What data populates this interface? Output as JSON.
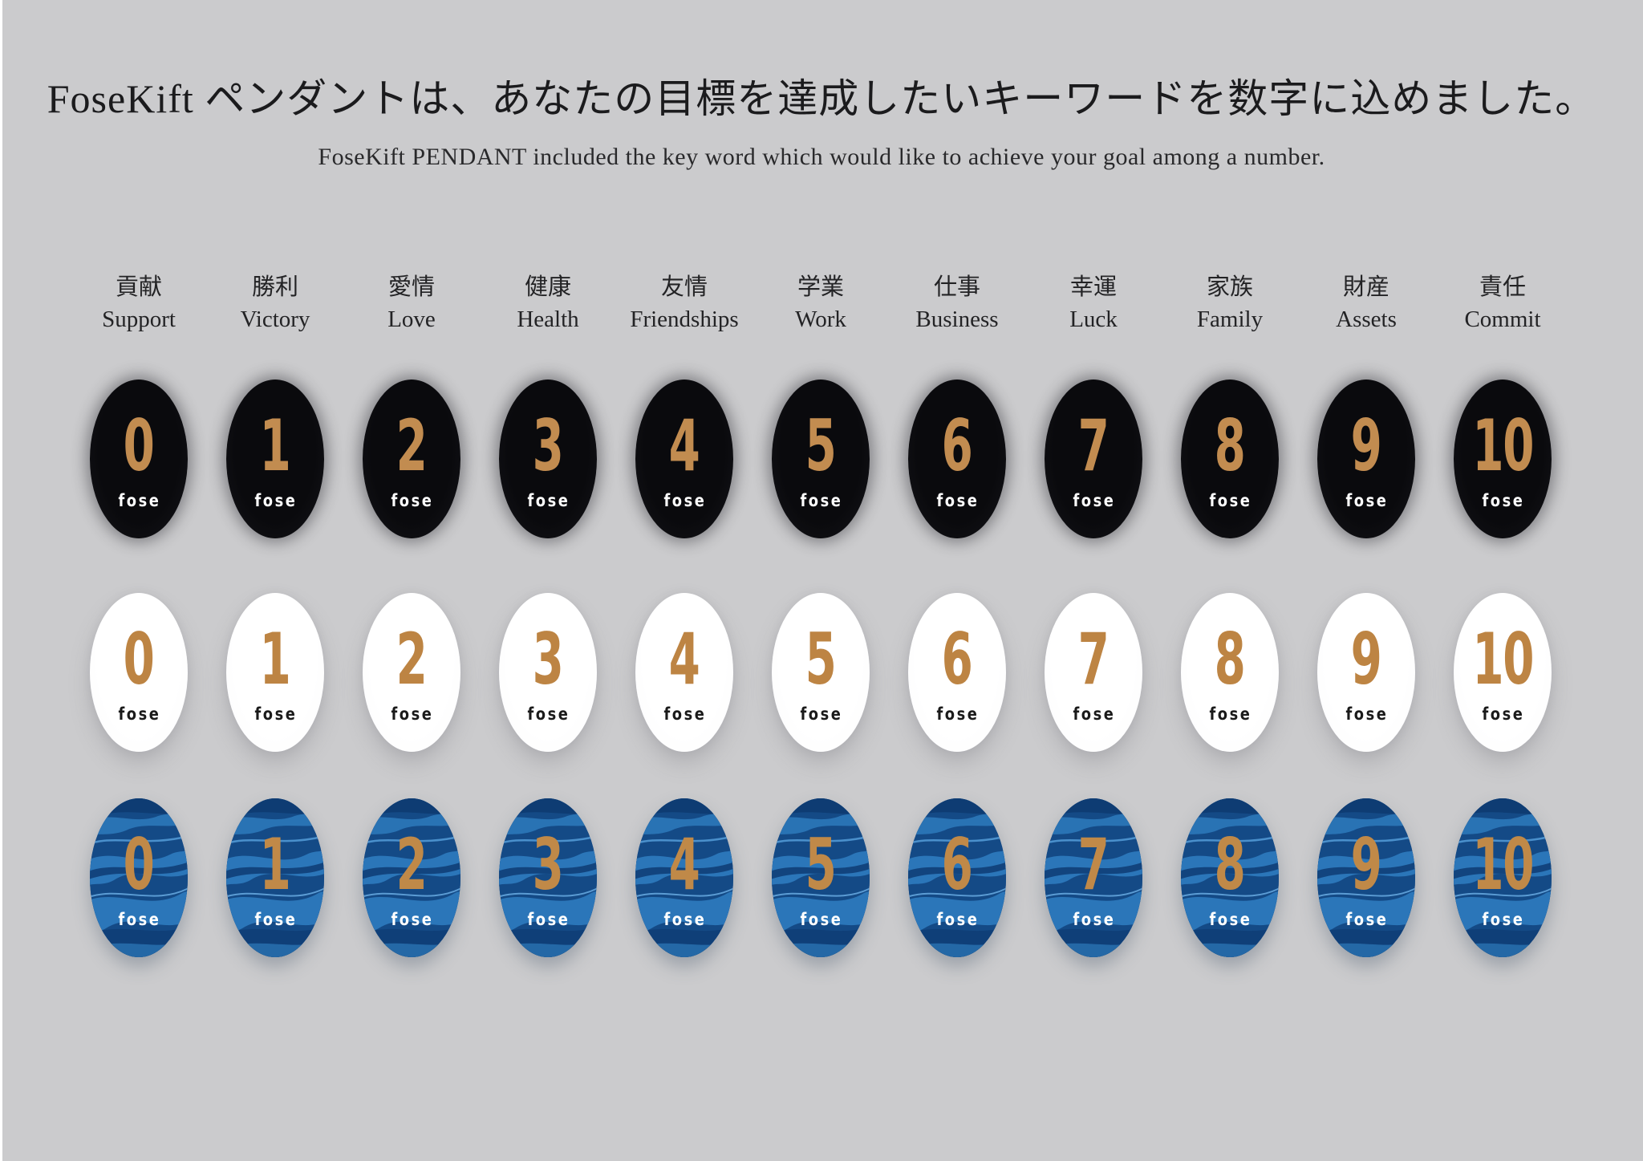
{
  "page": {
    "background": "#cbcbcd",
    "edge_strip": "#ffffff"
  },
  "header": {
    "title": "FoseKift ペンダントは、あなたの目標を達成したいキーワードを数字に込めました。",
    "subtitle": "FoseKift PENDANT included the key word which would like to achieve your goal among a number."
  },
  "brand": {
    "label": "fose"
  },
  "columns": [
    {
      "kanji": "貢献",
      "english": "Support",
      "number": "0"
    },
    {
      "kanji": "勝利",
      "english": "Victory",
      "number": "1"
    },
    {
      "kanji": "愛情",
      "english": "Love",
      "number": "2"
    },
    {
      "kanji": "健康",
      "english": "Health",
      "number": "3"
    },
    {
      "kanji": "友情",
      "english": "Friendships",
      "number": "4"
    },
    {
      "kanji": "学業",
      "english": "Work",
      "number": "5"
    },
    {
      "kanji": "仕事",
      "english": "Business",
      "number": "6"
    },
    {
      "kanji": "幸運",
      "english": "Luck",
      "number": "7"
    },
    {
      "kanji": "家族",
      "english": "Family",
      "number": "8"
    },
    {
      "kanji": "財産",
      "english": "Assets",
      "number": "9"
    },
    {
      "kanji": "責任",
      "english": "Commit",
      "number": "10"
    }
  ],
  "rows": [
    {
      "variant": "black",
      "number_color": "#c28c50",
      "brand_color": "#ffffff"
    },
    {
      "variant": "white",
      "number_color": "#bd8443",
      "brand_color": "#1a1a1a"
    },
    {
      "variant": "blue",
      "number_color": "#c08948",
      "brand_color": "#ffffff"
    }
  ],
  "colors": {
    "background": "#cbcbcd",
    "edge": "#ffffff",
    "gold": "#c0894e",
    "blue_base": "#144a86",
    "blue_light": "#2b76b9",
    "blue_dark": "#0e3c73"
  }
}
